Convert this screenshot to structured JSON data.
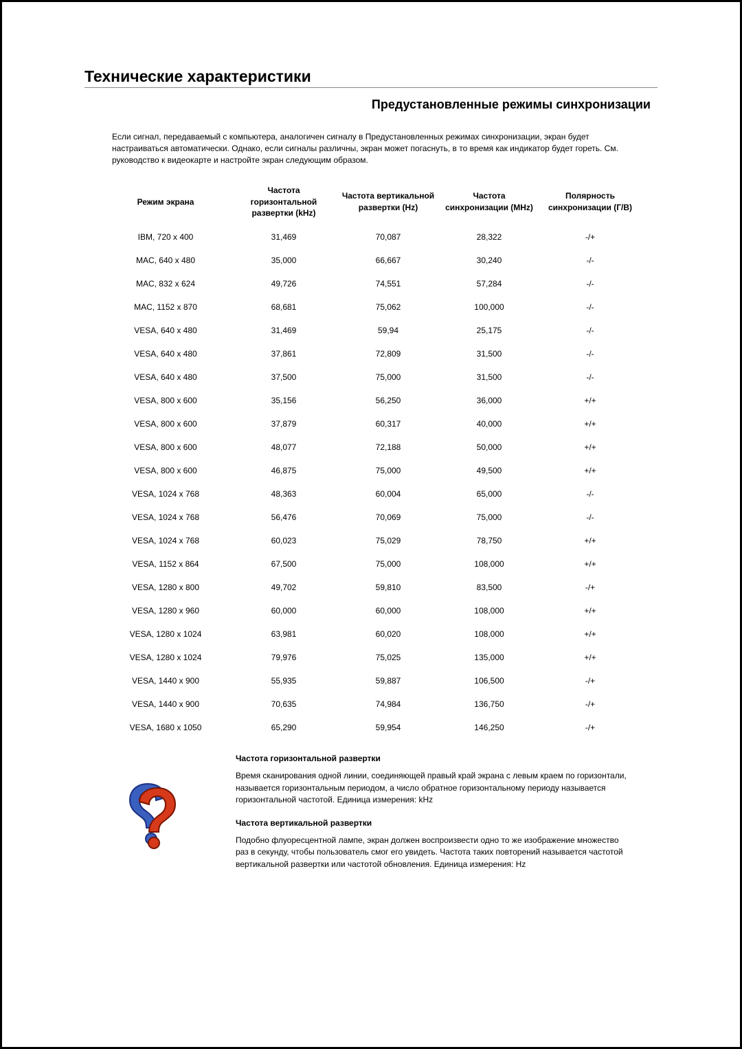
{
  "title": "Технические характеристики",
  "subtitle": "Предустановленные режимы синхронизации",
  "intro": "Если сигнал, передаваемый с компьютера, аналогичен сигналу в Предустановленных режимах синхронизации, экран будет настраиваться автоматически. Однако, если сигналы различны, экран может погаснуть, в то время как индикатор будет гореть. См. руководство к видеокарте и настройте экран следующим образом.",
  "table": {
    "columns": [
      "Режим экрана",
      "Частота горизонтальной развертки (kHz)",
      "Частота вертикальной развертки (Hz)",
      "Частота синхронизации (MHz)",
      "Полярность синхронизации (Г/В)"
    ],
    "rows": [
      [
        "IBM, 720 x 400",
        "31,469",
        "70,087",
        "28,322",
        "-/+"
      ],
      [
        "MAC, 640 x 480",
        "35,000",
        "66,667",
        "30,240",
        "-/-"
      ],
      [
        "MAC, 832 x 624",
        "49,726",
        "74,551",
        "57,284",
        "-/-"
      ],
      [
        "MAC, 1152 x 870",
        "68,681",
        "75,062",
        "100,000",
        "-/-"
      ],
      [
        "VESA, 640 x 480",
        "31,469",
        "59,94",
        "25,175",
        "-/-"
      ],
      [
        "VESA, 640 x 480",
        "37,861",
        "72,809",
        "31,500",
        "-/-"
      ],
      [
        "VESA, 640 x 480",
        "37,500",
        "75,000",
        "31,500",
        "-/-"
      ],
      [
        "VESA, 800 x 600",
        "35,156",
        "56,250",
        "36,000",
        "+/+"
      ],
      [
        "VESA, 800 x 600",
        "37,879",
        "60,317",
        "40,000",
        "+/+"
      ],
      [
        "VESA, 800 x 600",
        "48,077",
        "72,188",
        "50,000",
        "+/+"
      ],
      [
        "VESA, 800 x 600",
        "46,875",
        "75,000",
        "49,500",
        "+/+"
      ],
      [
        "VESA, 1024 x 768",
        "48,363",
        "60,004",
        "65,000",
        "-/-"
      ],
      [
        "VESA, 1024 x 768",
        "56,476",
        "70,069",
        "75,000",
        "-/-"
      ],
      [
        "VESA, 1024 x 768",
        "60,023",
        "75,029",
        "78,750",
        "+/+"
      ],
      [
        "VESA, 1152 x 864",
        "67,500",
        "75,000",
        "108,000",
        "+/+"
      ],
      [
        "VESA, 1280 x 800",
        "49,702",
        "59,810",
        "83,500",
        "-/+"
      ],
      [
        "VESA, 1280 x 960",
        "60,000",
        "60,000",
        "108,000",
        "+/+"
      ],
      [
        "VESA, 1280 x 1024",
        "63,981",
        "60,020",
        "108,000",
        "+/+"
      ],
      [
        "VESA, 1280 x 1024",
        "79,976",
        "75,025",
        "135,000",
        "+/+"
      ],
      [
        "VESA, 1440 x 900",
        "55,935",
        "59,887",
        "106,500",
        "-/+"
      ],
      [
        "VESA, 1440 x 900",
        "70,635",
        "74,984",
        "136,750",
        "-/+"
      ],
      [
        "VESA, 1680 x 1050",
        "65,290",
        "59,954",
        "146,250",
        "-/+"
      ]
    ]
  },
  "definitions": {
    "icon_name": "question-mark-icon",
    "h_freq_title": "Частота горизонтальной развертки",
    "h_freq_text": "Время сканирования одной линии, соединяющей правый край экрана с левым краем по горизонтали, называется горизонтальным периодом, а число обратное горизонтальному периоду называется горизонтальной частотой. Единица измерения: kHz",
    "v_freq_title": "Частота вертикальной развертки",
    "v_freq_text": "Подобно флуоресцентной лампе, экран должен воспроизвести одно то же изображение множество раз в секунду, чтобы пользователь смог его увидеть. Частота таких повторений называется частотой вертикальной развертки или частотой обновления. Единица измерения: Hz"
  }
}
